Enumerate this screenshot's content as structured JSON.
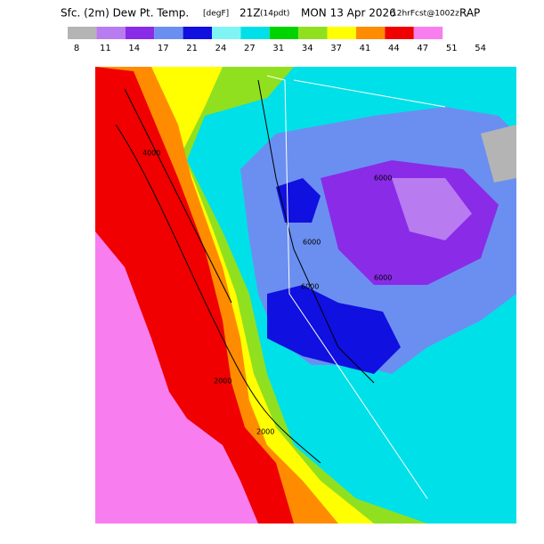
{
  "header": {
    "title_main": "Sfc. (2m) Dew Pt. Temp.",
    "title_unit": "[degF]",
    "title_time": "21Z",
    "title_local": "(14pdt)",
    "title_date": "MON 13 Apr 2026",
    "title_fcst": "12hrFcst@1002z",
    "title_model": "RAP"
  },
  "colorbar": {
    "labels": [
      8,
      11,
      14,
      17,
      21,
      24,
      27,
      31,
      34,
      37,
      41,
      44,
      47,
      51,
      54
    ],
    "colors": [
      "#b4b4b4",
      "#b97bf0",
      "#8a2be8",
      "#6b8ff0",
      "#1010e0",
      "#80f4f4",
      "#00e0e8",
      "#00d400",
      "#90e020",
      "#ffff00",
      "#ff8c00",
      "#f00000",
      "#f87ef0"
    ]
  },
  "map": {
    "contour_labels": [
      "6000",
      "6000",
      "6000",
      "6000",
      "2000",
      "2000",
      "4000"
    ]
  }
}
